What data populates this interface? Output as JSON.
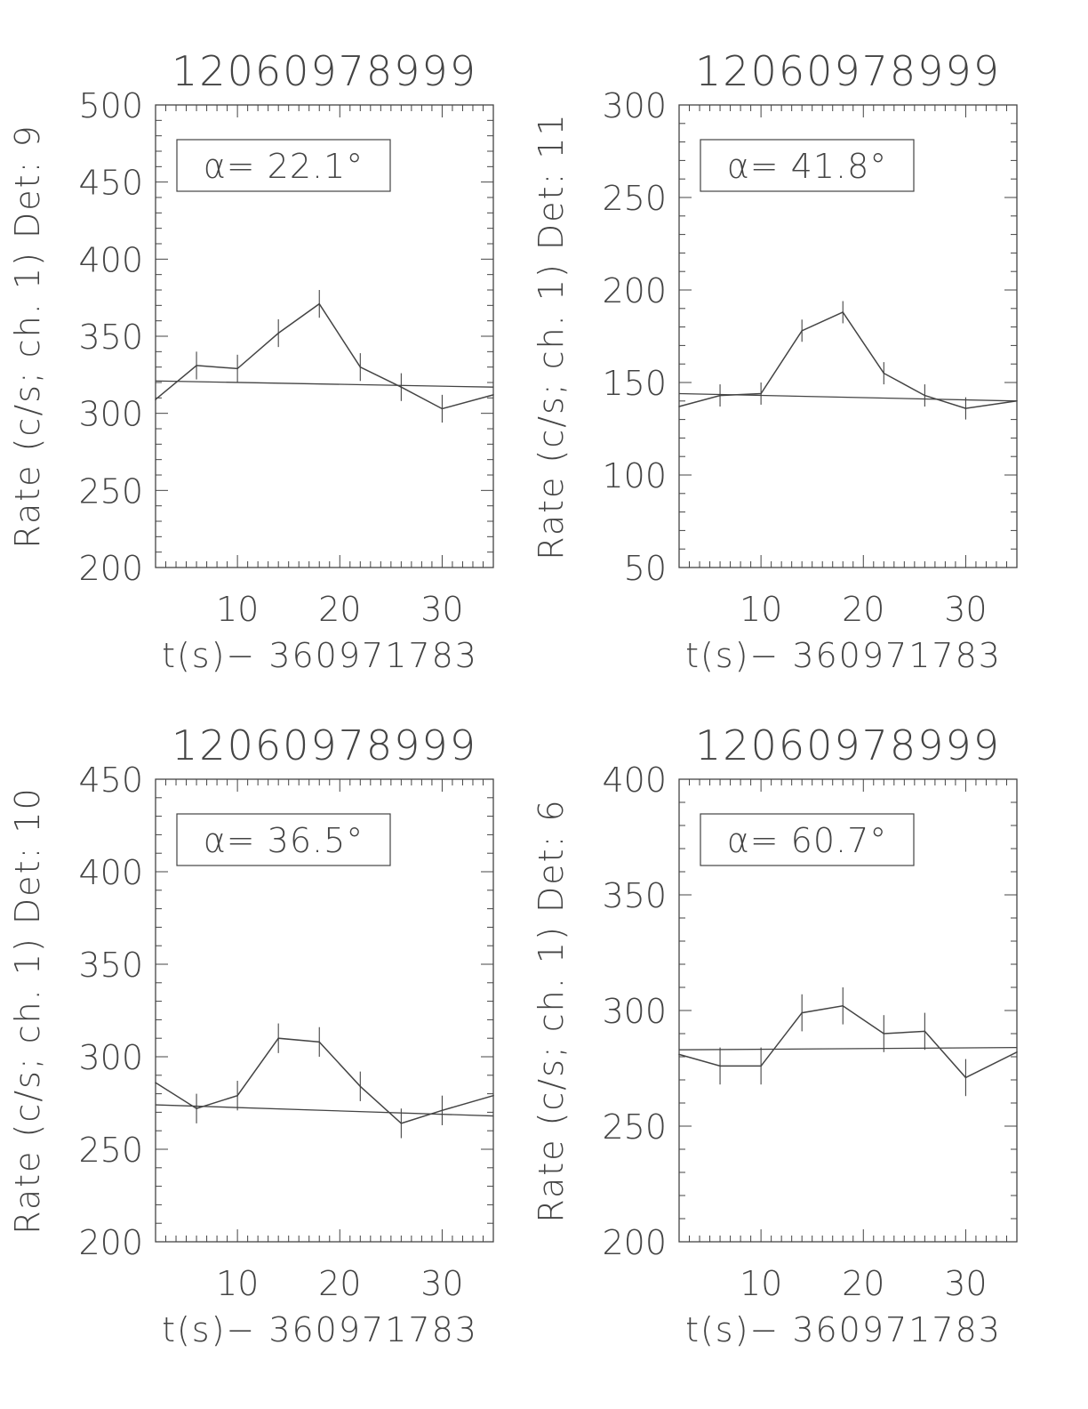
{
  "chart_data": [
    {
      "type": "line",
      "title": "12060978999",
      "xlabel": "t(s)− 360971783",
      "ylabel": "Rate (c/s; ch. 1) Det: 9",
      "annotation": "α= 22.1°",
      "xlim": [
        2,
        35
      ],
      "ylim": [
        200,
        500
      ],
      "xticks": [
        10,
        20,
        30
      ],
      "yticks": [
        200,
        250,
        300,
        350,
        400,
        450,
        500
      ],
      "x": [
        2,
        6,
        10,
        14,
        18,
        22,
        26,
        30,
        35
      ],
      "y": [
        309,
        331,
        329,
        352,
        371,
        330,
        317,
        303,
        312
      ],
      "yerr": [
        0,
        9,
        9,
        9,
        9,
        9,
        9,
        9,
        0
      ],
      "background_fit": {
        "x": [
          2,
          35
        ],
        "y": [
          321,
          317
        ]
      },
      "grid": false
    },
    {
      "type": "line",
      "title": "12060978999",
      "xlabel": "t(s)− 360971783",
      "ylabel": "Rate (c/s; ch. 1) Det: 11",
      "annotation": "α= 41.8°",
      "xlim": [
        2,
        35
      ],
      "ylim": [
        50,
        300
      ],
      "xticks": [
        10,
        20,
        30
      ],
      "yticks": [
        50,
        100,
        150,
        200,
        250,
        300
      ],
      "x": [
        2,
        6,
        10,
        14,
        18,
        22,
        26,
        30,
        35
      ],
      "y": [
        137,
        143,
        144,
        178,
        188,
        155,
        143,
        136,
        140
      ],
      "yerr": [
        0,
        6,
        6,
        6,
        6,
        6,
        6,
        6,
        0
      ],
      "background_fit": {
        "x": [
          2,
          35
        ],
        "y": [
          144,
          140
        ]
      },
      "grid": false
    },
    {
      "type": "line",
      "title": "12060978999",
      "xlabel": "t(s)− 360971783",
      "ylabel": "Rate (c/s; ch. 1) Det: 10",
      "annotation": "α= 36.5°",
      "xlim": [
        2,
        35
      ],
      "ylim": [
        200,
        450
      ],
      "xticks": [
        10,
        20,
        30
      ],
      "yticks": [
        200,
        250,
        300,
        350,
        400,
        450
      ],
      "x": [
        2,
        6,
        10,
        14,
        18,
        22,
        26,
        30,
        35
      ],
      "y": [
        286,
        272,
        279,
        310,
        308,
        284,
        264,
        271,
        279
      ],
      "yerr": [
        0,
        8,
        8,
        8,
        8,
        8,
        8,
        8,
        0
      ],
      "background_fit": {
        "x": [
          2,
          35
        ],
        "y": [
          274,
          268
        ]
      },
      "grid": false
    },
    {
      "type": "line",
      "title": "12060978999",
      "xlabel": "t(s)− 360971783",
      "ylabel": "Rate (c/s; ch. 1) Det: 6",
      "annotation": "α= 60.7°",
      "xlim": [
        2,
        35
      ],
      "ylim": [
        200,
        400
      ],
      "xticks": [
        10,
        20,
        30
      ],
      "yticks": [
        200,
        250,
        300,
        350,
        400
      ],
      "x": [
        2,
        6,
        10,
        14,
        18,
        22,
        26,
        30,
        35
      ],
      "y": [
        281,
        276,
        276,
        299,
        302,
        290,
        291,
        271,
        282
      ],
      "yerr": [
        0,
        8,
        8,
        8,
        8,
        8,
        8,
        8,
        0
      ],
      "background_fit": {
        "x": [
          2,
          35
        ],
        "y": [
          283,
          284
        ]
      },
      "grid": false
    }
  ]
}
